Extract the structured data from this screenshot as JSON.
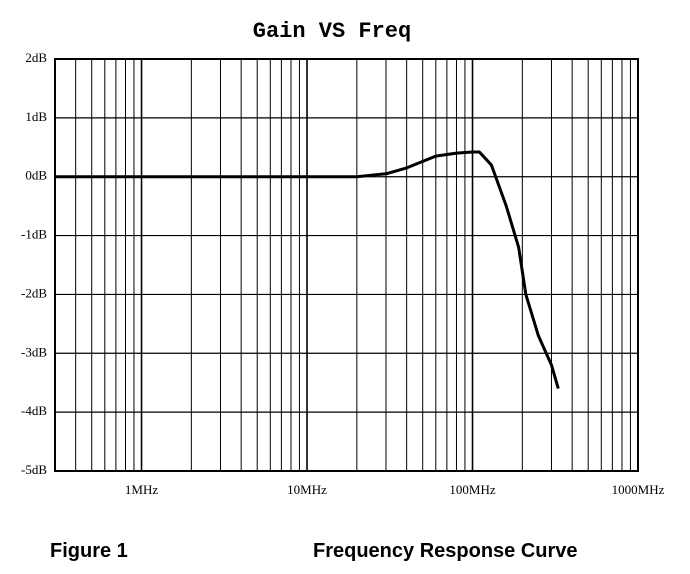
{
  "chart_data": {
    "type": "line",
    "title": "Gain VS Freq",
    "figure_label": "Figure 1",
    "caption": "Frequency Response Curve",
    "x_scale": "log",
    "grid": true,
    "minor_grid": true,
    "xlim": [
      0.3,
      1000
    ],
    "ylim": [
      -5,
      2
    ],
    "xticks": [
      {
        "value": 1,
        "label": "1MHz"
      },
      {
        "value": 10,
        "label": "10MHz"
      },
      {
        "value": 100,
        "label": "100MHz"
      },
      {
        "value": 1000,
        "label": "1000MHz"
      }
    ],
    "yticks": [
      {
        "value": 2,
        "label": "2dB"
      },
      {
        "value": 1,
        "label": "1dB"
      },
      {
        "value": 0,
        "label": "0dB"
      },
      {
        "value": -1,
        "label": "-1dB"
      },
      {
        "value": -2,
        "label": "-2dB"
      },
      {
        "value": -3,
        "label": "-3dB"
      },
      {
        "value": -4,
        "label": "-4dB"
      },
      {
        "value": -5,
        "label": "-5dB"
      }
    ],
    "x": [
      0.3,
      20,
      30,
      40,
      60,
      80,
      100,
      110,
      130,
      160,
      190,
      210,
      250,
      300,
      330
    ],
    "series": [
      {
        "color": "#000000",
        "values": [
          0,
          0,
          0.05,
          0.15,
          0.35,
          0.4,
          0.42,
          0.42,
          0.2,
          -0.5,
          -1.2,
          -2.0,
          -2.7,
          -3.2,
          -3.6
        ]
      }
    ]
  }
}
